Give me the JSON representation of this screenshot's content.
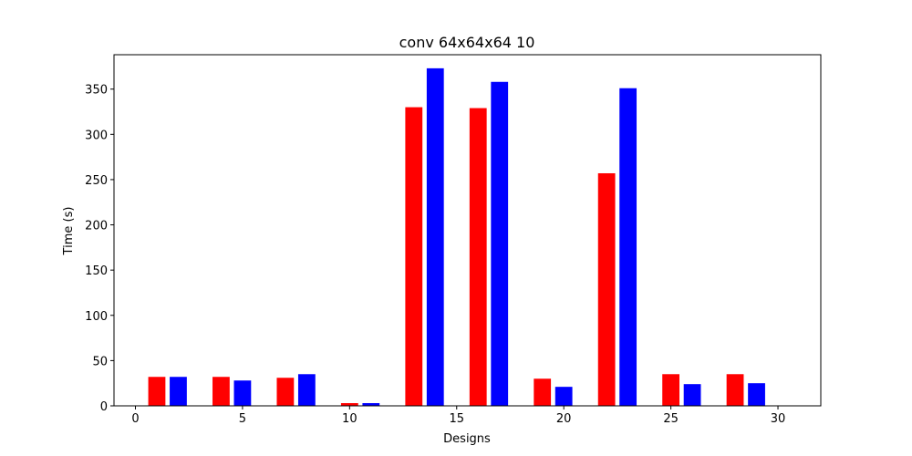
{
  "chart_data": {
    "type": "bar",
    "title": "conv 64x64x64 10",
    "xlabel": "Designs",
    "ylabel": "Time (s)",
    "xlim": [
      -1,
      32
    ],
    "ylim": [
      0,
      388
    ],
    "xticks": [
      0,
      5,
      10,
      15,
      20,
      25,
      30
    ],
    "yticks": [
      0,
      50,
      100,
      150,
      200,
      250,
      300,
      350
    ],
    "grid": false,
    "legend": "none",
    "series": [
      {
        "color": "#ff0000",
        "x": [
          1,
          4,
          7,
          10,
          13,
          16,
          19,
          22,
          25,
          28
        ],
        "values": [
          32,
          32,
          31,
          3,
          330,
          329,
          30,
          257,
          35,
          35
        ]
      },
      {
        "color": "#0000ff",
        "x": [
          2,
          5,
          8,
          11,
          14,
          17,
          20,
          23,
          26,
          29
        ],
        "values": [
          32,
          28,
          35,
          3,
          373,
          358,
          21,
          351,
          24,
          25
        ]
      }
    ]
  }
}
